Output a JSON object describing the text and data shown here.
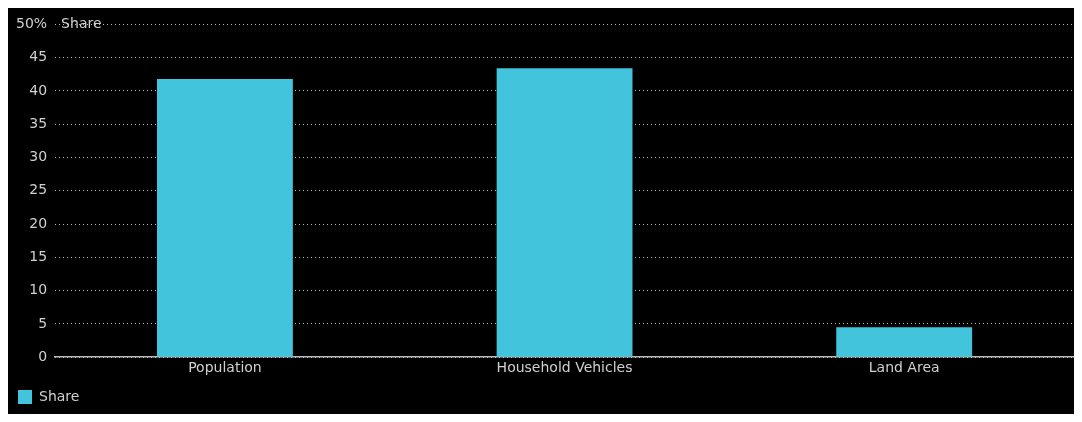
{
  "chart_data": {
    "type": "bar",
    "ylabel": "Share",
    "categories": [
      "Population",
      "Household Vehicles",
      "Land Area"
    ],
    "series": [
      {
        "name": "Share",
        "color": "#43c4dd",
        "values": [
          41.8,
          43.4,
          4.5
        ]
      }
    ],
    "ylim": [
      0,
      50
    ],
    "yticks": [
      0,
      5,
      10,
      15,
      20,
      25,
      30,
      35,
      40,
      45,
      {
        "value": 50,
        "label": "50%"
      }
    ],
    "grid": "y",
    "legend": "bottom left"
  }
}
